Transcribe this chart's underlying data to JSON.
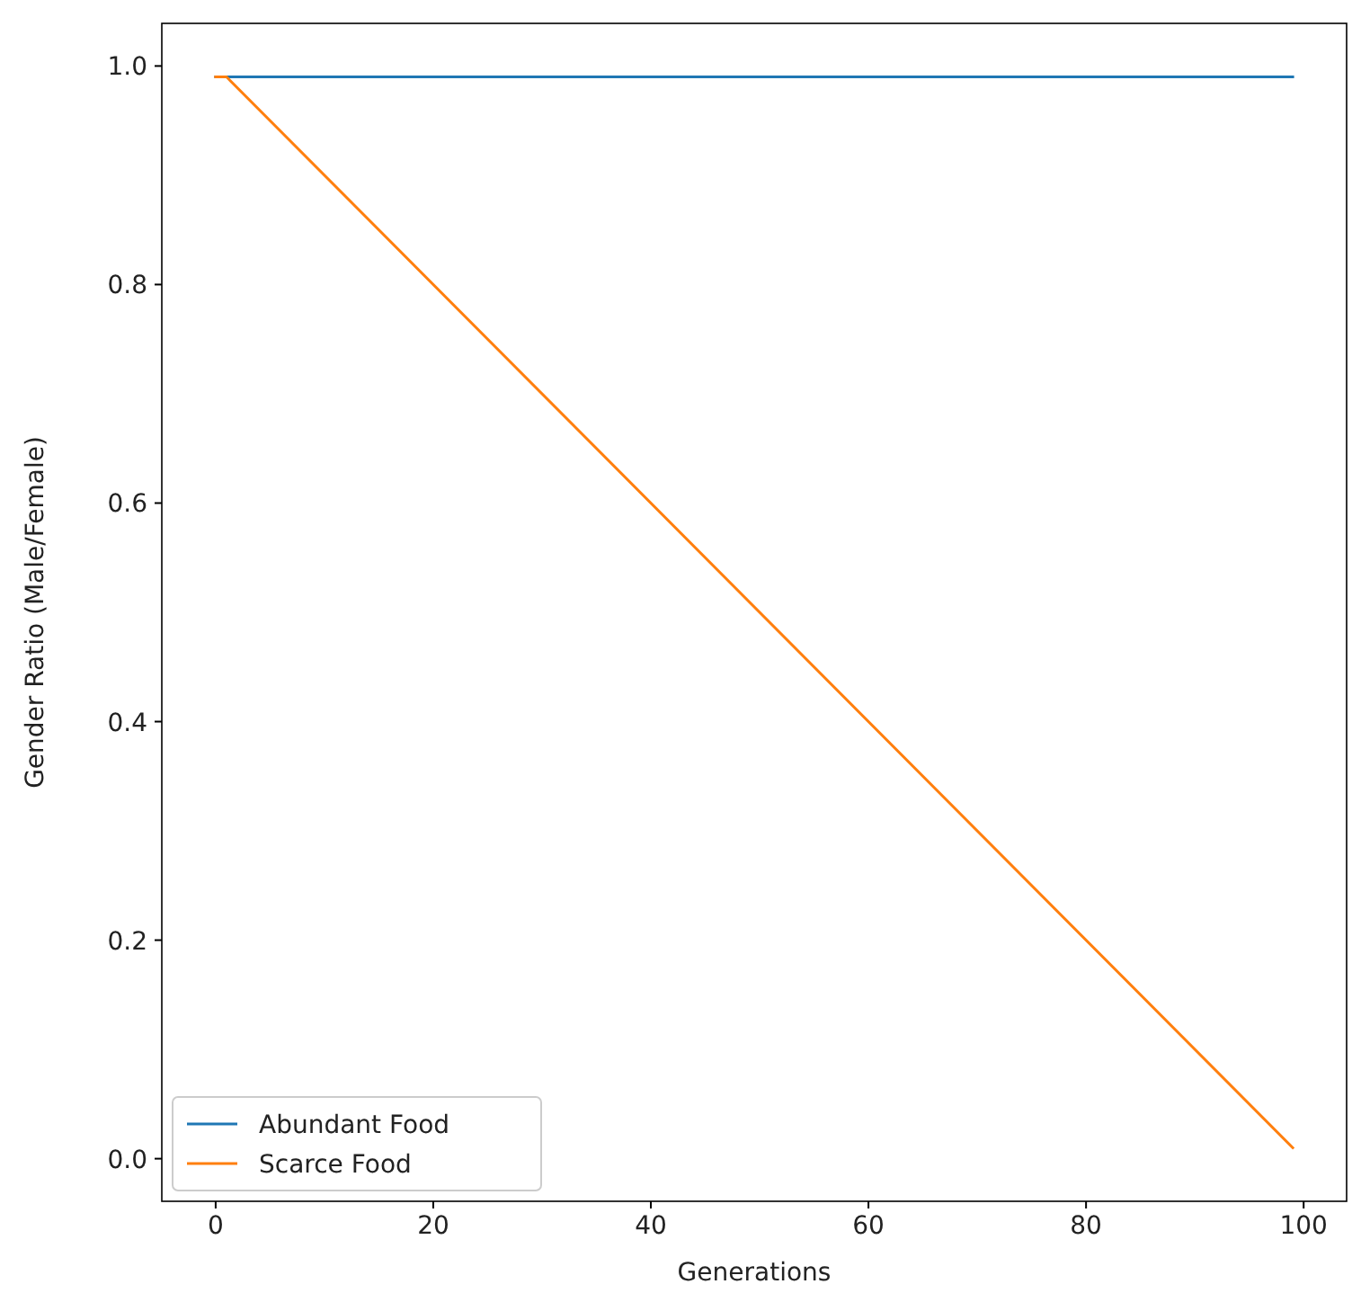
{
  "chart_data": {
    "type": "line",
    "xlabel": "Generations",
    "ylabel": "Gender Ratio (Male/Female)",
    "series": [
      {
        "name": "Abundant Food",
        "color": "#1f77b4",
        "x": [
          0,
          99
        ],
        "values": [
          0.99,
          0.99
        ]
      },
      {
        "name": "Scarce Food",
        "color": "#ff7f0e",
        "x": [
          0,
          1,
          99
        ],
        "values": [
          0.99,
          0.99,
          0.01
        ]
      }
    ],
    "xlim": [
      -4.95,
      103.95
    ],
    "xticks": [
      0,
      20,
      40,
      60,
      80,
      100
    ],
    "ylim": [
      -0.039,
      1.039
    ],
    "yticks": [
      {
        "value": 0,
        "label": "0.0"
      },
      {
        "value": 0.2,
        "label": "0.2"
      },
      {
        "value": 0.4,
        "label": "0.4"
      },
      {
        "value": 0.6,
        "label": "0.6"
      },
      {
        "value": 0.8,
        "label": "0.8"
      },
      {
        "value": 1,
        "label": "1.0"
      }
    ],
    "legend": "bottom left",
    "grid": false,
    "marker": "none",
    "line_style": "solid"
  }
}
